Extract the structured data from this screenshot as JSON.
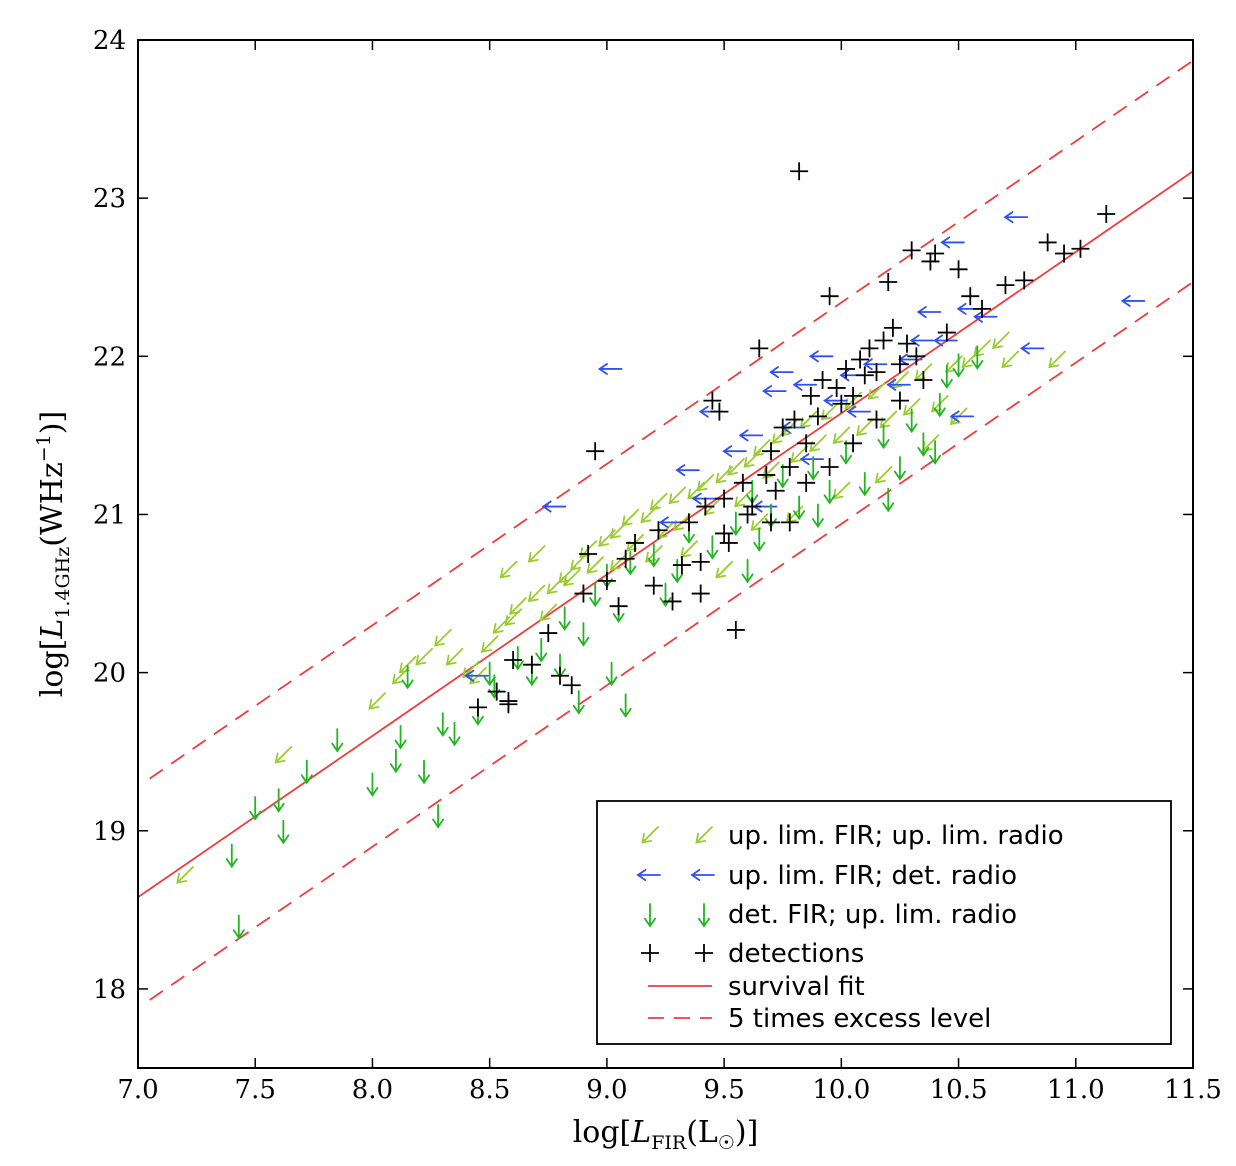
{
  "chart_data": {
    "type": "scatter",
    "xlabel": "log[L_FIR(L☉)]",
    "ylabel": "log[L_1.4GHz(WHz^-1)]",
    "xlim": [
      7.0,
      11.5
    ],
    "ylim": [
      17.5,
      24.0
    ],
    "xticks": [
      "7.0",
      "7.5",
      "8.0",
      "8.5",
      "9.0",
      "9.5",
      "10.0",
      "10.5",
      "11.0",
      "11.5"
    ],
    "yticks": [
      "18",
      "19",
      "20",
      "21",
      "22",
      "23",
      "24"
    ],
    "grid": false,
    "legend_position": "lower-right",
    "colors": {
      "fir_radio_limits": "#9acd32",
      "fir_limit_radio_det": "#3050f0",
      "fir_det_radio_limit": "#22b522",
      "detections": "#000000",
      "fit": "#f03c3c"
    },
    "legend": [
      {
        "label": "up. lim. FIR; up. lim. radio",
        "marker": "arrow-down-left",
        "color": "#9acd32"
      },
      {
        "label": "up. lim. FIR; det. radio",
        "marker": "arrow-left",
        "color": "#3050f0"
      },
      {
        "label": "det. FIR; up. lim. radio",
        "marker": "arrow-down",
        "color": "#22b522"
      },
      {
        "label": "detections",
        "marker": "plus",
        "color": "#000000"
      },
      {
        "label": "survival fit",
        "marker": "solid-line",
        "color": "#f03c3c"
      },
      {
        "label": "5 times excess level",
        "marker": "dashed-line",
        "color": "#f03c3c"
      }
    ],
    "lines": [
      {
        "label": "survival fit",
        "style": "solid",
        "points": [
          [
            7.0,
            18.58
          ],
          [
            11.5,
            23.17
          ]
        ]
      },
      {
        "label": "5 times excess level",
        "style": "dashed",
        "points": [
          [
            7.05,
            19.33
          ],
          [
            11.5,
            23.87
          ]
        ]
      },
      {
        "label": "5 times excess level",
        "style": "dashed",
        "points": [
          [
            7.05,
            17.93
          ],
          [
            11.5,
            22.47
          ]
        ]
      }
    ],
    "series": [
      {
        "name": "up. lim. FIR; up. lim. radio",
        "marker": "arrow-down-left",
        "points": [
          [
            7.2,
            18.72
          ],
          [
            7.62,
            19.48
          ],
          [
            8.02,
            19.82
          ],
          [
            8.12,
            19.98
          ],
          [
            8.15,
            20.05
          ],
          [
            8.22,
            20.1
          ],
          [
            8.3,
            20.22
          ],
          [
            8.35,
            20.1
          ],
          [
            8.42,
            20.02
          ],
          [
            8.45,
            19.98
          ],
          [
            8.5,
            20.18
          ],
          [
            8.55,
            20.3
          ],
          [
            8.6,
            20.35
          ],
          [
            8.62,
            20.42
          ],
          [
            8.7,
            20.5
          ],
          [
            8.75,
            20.38
          ],
          [
            8.78,
            20.55
          ],
          [
            8.83,
            20.62
          ],
          [
            8.88,
            20.7
          ],
          [
            8.92,
            20.78
          ],
          [
            8.95,
            20.68
          ],
          [
            9.0,
            20.85
          ],
          [
            9.05,
            20.9
          ],
          [
            9.1,
            20.98
          ],
          [
            9.12,
            20.82
          ],
          [
            9.18,
            21.0
          ],
          [
            9.22,
            21.08
          ],
          [
            9.25,
            20.9
          ],
          [
            9.3,
            21.12
          ],
          [
            9.32,
            20.95
          ],
          [
            9.38,
            21.15
          ],
          [
            9.42,
            21.2
          ],
          [
            9.45,
            21.05
          ],
          [
            9.5,
            21.25
          ],
          [
            9.55,
            21.3
          ],
          [
            9.58,
            21.1
          ],
          [
            9.62,
            21.35
          ],
          [
            9.66,
            21.42
          ],
          [
            9.7,
            21.28
          ],
          [
            9.74,
            21.5
          ],
          [
            9.78,
            21.55
          ],
          [
            9.82,
            21.38
          ],
          [
            9.86,
            21.6
          ],
          [
            9.9,
            21.45
          ],
          [
            9.95,
            21.65
          ],
          [
            10.0,
            21.5
          ],
          [
            10.05,
            21.72
          ],
          [
            10.1,
            21.55
          ],
          [
            10.15,
            21.78
          ],
          [
            10.2,
            21.6
          ],
          [
            10.25,
            21.85
          ],
          [
            10.3,
            21.68
          ],
          [
            10.35,
            21.9
          ],
          [
            10.42,
            21.7
          ],
          [
            10.48,
            21.95
          ],
          [
            10.55,
            21.98
          ],
          [
            10.6,
            22.05
          ],
          [
            10.68,
            22.1
          ],
          [
            10.72,
            21.98
          ],
          [
            10.92,
            21.98
          ],
          [
            8.58,
            20.65
          ],
          [
            8.7,
            20.75
          ],
          [
            8.85,
            20.6
          ],
          [
            9.05,
            20.7
          ],
          [
            9.2,
            20.75
          ],
          [
            9.35,
            20.78
          ],
          [
            9.5,
            20.65
          ],
          [
            9.65,
            20.95
          ],
          [
            9.8,
            21.0
          ],
          [
            10.0,
            21.15
          ],
          [
            10.18,
            21.25
          ],
          [
            10.38,
            21.45
          ],
          [
            10.5,
            21.62
          ]
        ]
      },
      {
        "name": "up. lim. FIR; det. radio",
        "marker": "arrow-left",
        "points": [
          [
            8.45,
            19.98
          ],
          [
            8.78,
            21.05
          ],
          [
            9.02,
            21.92
          ],
          [
            9.35,
            21.28
          ],
          [
            9.42,
            21.1
          ],
          [
            9.45,
            21.65
          ],
          [
            9.55,
            21.4
          ],
          [
            9.62,
            21.5
          ],
          [
            9.72,
            21.78
          ],
          [
            9.75,
            21.9
          ],
          [
            9.8,
            21.55
          ],
          [
            9.85,
            21.82
          ],
          [
            9.92,
            22.0
          ],
          [
            9.98,
            21.72
          ],
          [
            10.05,
            21.88
          ],
          [
            10.15,
            21.95
          ],
          [
            10.25,
            21.82
          ],
          [
            10.3,
            21.98
          ],
          [
            10.35,
            22.1
          ],
          [
            10.38,
            22.28
          ],
          [
            10.45,
            22.1
          ],
          [
            10.48,
            22.72
          ],
          [
            10.52,
            21.62
          ],
          [
            10.55,
            22.3
          ],
          [
            10.62,
            22.25
          ],
          [
            10.75,
            22.88
          ],
          [
            10.82,
            22.05
          ],
          [
            11.25,
            22.35
          ],
          [
            10.08,
            21.65
          ],
          [
            9.88,
            21.35
          ],
          [
            9.68,
            21.05
          ],
          [
            9.28,
            20.95
          ]
        ]
      },
      {
        "name": "det. FIR; up. lim. radio",
        "marker": "arrow-down",
        "points": [
          [
            7.4,
            18.85
          ],
          [
            7.43,
            18.4
          ],
          [
            7.5,
            19.15
          ],
          [
            7.6,
            19.2
          ],
          [
            7.62,
            19.0
          ],
          [
            7.72,
            19.38
          ],
          [
            7.85,
            19.58
          ],
          [
            8.0,
            19.3
          ],
          [
            8.1,
            19.45
          ],
          [
            8.12,
            19.6
          ],
          [
            8.15,
            19.98
          ],
          [
            8.22,
            19.38
          ],
          [
            8.28,
            19.1
          ],
          [
            8.3,
            19.68
          ],
          [
            8.35,
            19.62
          ],
          [
            8.45,
            19.75
          ],
          [
            8.5,
            20.0
          ],
          [
            8.52,
            19.92
          ],
          [
            8.62,
            20.1
          ],
          [
            8.68,
            20.0
          ],
          [
            8.72,
            20.15
          ],
          [
            8.8,
            20.05
          ],
          [
            8.82,
            20.35
          ],
          [
            8.88,
            19.82
          ],
          [
            8.9,
            20.25
          ],
          [
            8.95,
            20.5
          ],
          [
            9.0,
            20.62
          ],
          [
            9.02,
            20.0
          ],
          [
            9.05,
            20.4
          ],
          [
            9.08,
            19.8
          ],
          [
            9.1,
            20.7
          ],
          [
            9.2,
            20.75
          ],
          [
            9.25,
            20.5
          ],
          [
            9.3,
            20.65
          ],
          [
            9.35,
            20.9
          ],
          [
            9.45,
            20.8
          ],
          [
            9.55,
            20.95
          ],
          [
            9.6,
            20.65
          ],
          [
            9.62,
            21.15
          ],
          [
            9.7,
            21.0
          ],
          [
            9.75,
            21.25
          ],
          [
            9.82,
            21.05
          ],
          [
            9.88,
            21.3
          ],
          [
            9.95,
            21.15
          ],
          [
            10.02,
            21.4
          ],
          [
            10.1,
            21.2
          ],
          [
            10.18,
            21.5
          ],
          [
            10.25,
            21.3
          ],
          [
            10.3,
            21.6
          ],
          [
            10.35,
            21.45
          ],
          [
            10.42,
            21.7
          ],
          [
            10.45,
            21.88
          ],
          [
            10.5,
            21.95
          ],
          [
            10.58,
            22.0
          ],
          [
            10.4,
            21.4
          ],
          [
            10.2,
            21.1
          ],
          [
            9.9,
            21.0
          ],
          [
            9.65,
            20.85
          ]
        ]
      },
      {
        "name": "detections",
        "marker": "plus",
        "points": [
          [
            8.45,
            19.78
          ],
          [
            8.53,
            19.88
          ],
          [
            8.58,
            19.82
          ],
          [
            8.6,
            20.08
          ],
          [
            8.68,
            20.05
          ],
          [
            8.75,
            20.25
          ],
          [
            8.8,
            19.98
          ],
          [
            8.85,
            19.92
          ],
          [
            8.9,
            20.5
          ],
          [
            8.92,
            20.75
          ],
          [
            8.95,
            21.4
          ],
          [
            9.0,
            20.58
          ],
          [
            9.05,
            20.42
          ],
          [
            9.08,
            20.72
          ],
          [
            9.12,
            20.82
          ],
          [
            9.2,
            20.55
          ],
          [
            9.22,
            20.9
          ],
          [
            9.28,
            20.45
          ],
          [
            9.32,
            20.68
          ],
          [
            9.35,
            20.95
          ],
          [
            9.4,
            20.5
          ],
          [
            9.42,
            21.05
          ],
          [
            9.45,
            21.72
          ],
          [
            9.48,
            21.65
          ],
          [
            9.5,
            21.1
          ],
          [
            9.52,
            20.82
          ],
          [
            9.55,
            20.27
          ],
          [
            9.58,
            21.2
          ],
          [
            9.62,
            21.05
          ],
          [
            9.65,
            22.05
          ],
          [
            9.68,
            21.25
          ],
          [
            9.7,
            21.4
          ],
          [
            9.72,
            21.15
          ],
          [
            9.75,
            21.55
          ],
          [
            9.78,
            21.3
          ],
          [
            9.8,
            21.6
          ],
          [
            9.82,
            23.17
          ],
          [
            9.85,
            21.45
          ],
          [
            9.87,
            21.75
          ],
          [
            9.9,
            21.62
          ],
          [
            9.92,
            21.85
          ],
          [
            9.95,
            22.38
          ],
          [
            9.98,
            21.8
          ],
          [
            10.0,
            21.7
          ],
          [
            10.02,
            21.92
          ],
          [
            10.05,
            21.75
          ],
          [
            10.08,
            21.98
          ],
          [
            10.1,
            21.88
          ],
          [
            10.12,
            22.05
          ],
          [
            10.15,
            21.9
          ],
          [
            10.18,
            22.1
          ],
          [
            10.2,
            22.47
          ],
          [
            10.22,
            22.18
          ],
          [
            10.25,
            21.95
          ],
          [
            10.28,
            22.08
          ],
          [
            10.3,
            22.67
          ],
          [
            10.32,
            22.0
          ],
          [
            10.35,
            21.85
          ],
          [
            10.38,
            22.6
          ],
          [
            10.4,
            22.65
          ],
          [
            10.45,
            22.15
          ],
          [
            10.5,
            22.55
          ],
          [
            10.55,
            22.38
          ],
          [
            10.6,
            22.3
          ],
          [
            10.7,
            22.45
          ],
          [
            10.78,
            22.48
          ],
          [
            10.88,
            22.72
          ],
          [
            10.95,
            22.65
          ],
          [
            11.02,
            22.68
          ],
          [
            11.13,
            22.9
          ],
          [
            9.6,
            21.0
          ],
          [
            9.7,
            20.95
          ],
          [
            9.85,
            21.2
          ],
          [
            9.95,
            21.3
          ],
          [
            10.05,
            21.45
          ],
          [
            10.15,
            21.6
          ],
          [
            10.25,
            21.72
          ],
          [
            9.4,
            20.7
          ],
          [
            9.5,
            20.88
          ],
          [
            9.78,
            20.95
          ],
          [
            8.58,
            19.8
          ]
        ]
      }
    ]
  }
}
